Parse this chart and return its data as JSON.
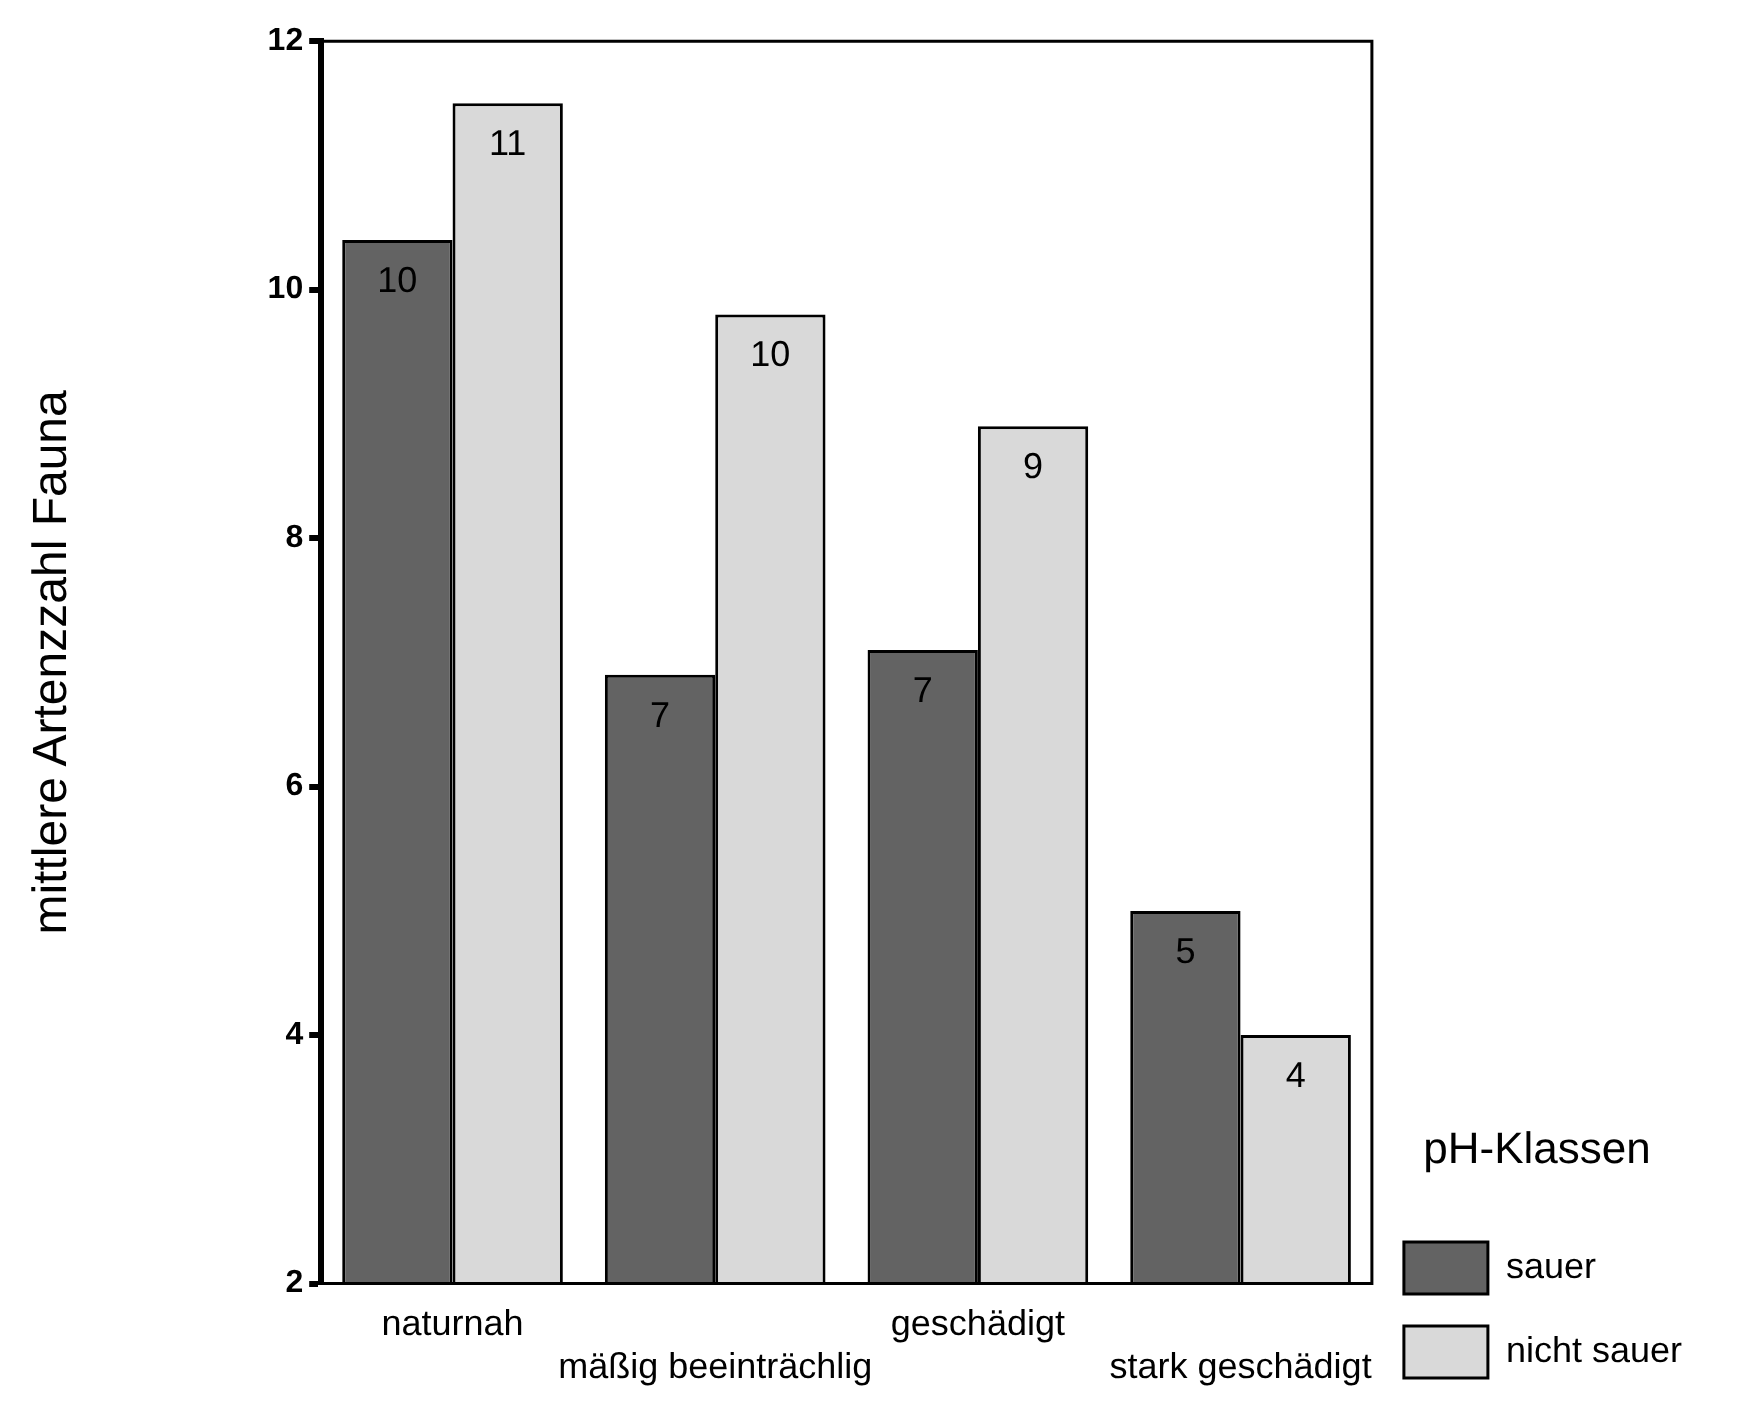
{
  "chart_data": {
    "type": "bar",
    "ylabel": "mittlere Artenzzahl Fauna",
    "legend_title": "pH-Klassen",
    "categories": [
      "naturnah",
      "mäßig beeinträchlig",
      "geschädigt",
      "stark geschädigt"
    ],
    "series": [
      {
        "name": "sauer",
        "color": "#636363",
        "values": [
          10.4,
          6.9,
          7.1,
          5.0
        ],
        "value_labels": [
          "10",
          "7",
          "7",
          "5"
        ]
      },
      {
        "name": "nicht sauer",
        "color": "#d9d9d9",
        "values": [
          11.5,
          9.8,
          8.9,
          4.0
        ],
        "value_labels": [
          "11",
          "10",
          "9",
          "4"
        ]
      }
    ],
    "ylim": [
      2,
      12
    ],
    "yticks": [
      2,
      4,
      6,
      8,
      10,
      12
    ],
    "grid": false,
    "legend": "right"
  }
}
